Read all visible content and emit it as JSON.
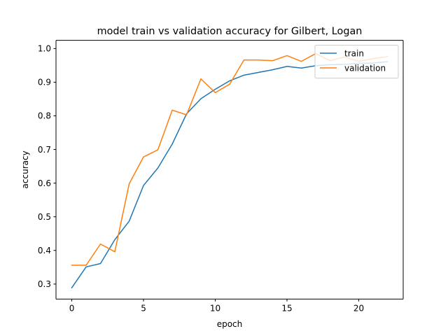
{
  "chart_data": {
    "type": "line",
    "title": "model train vs validation accuracy for Gilbert, Logan",
    "xlabel": "epoch",
    "ylabel": "accuracy",
    "xlim": [
      -1.1,
      23.1
    ],
    "ylim": [
      0.2555,
      1.0245
    ],
    "x_ticks": [
      0,
      5,
      10,
      15,
      20
    ],
    "x_tick_labels": [
      "0",
      "5",
      "10",
      "15",
      "20"
    ],
    "y_ticks": [
      0.3,
      0.4,
      0.5,
      0.6,
      0.7,
      0.8,
      0.9,
      1.0
    ],
    "y_tick_labels": [
      "0.3",
      "0.4",
      "0.5",
      "0.6",
      "0.7",
      "0.8",
      "0.9",
      "1.0"
    ],
    "grid": false,
    "legend": "top-right",
    "x": [
      0,
      1,
      2,
      3,
      4,
      5,
      6,
      7,
      8,
      9,
      10,
      11,
      12,
      13,
      14,
      15,
      16,
      17,
      18,
      19,
      20,
      21,
      22
    ],
    "series": [
      {
        "name": "train",
        "color": "#1f77b4",
        "values": [
          0.289,
          0.351,
          0.361,
          0.432,
          0.487,
          0.593,
          0.645,
          0.716,
          0.806,
          0.851,
          0.879,
          0.904,
          0.921,
          0.929,
          0.937,
          0.947,
          0.942,
          0.949,
          0.952,
          0.953,
          0.956,
          0.957,
          0.961
        ]
      },
      {
        "name": "validation",
        "color": "#ff7f0e",
        "values": [
          0.356,
          0.356,
          0.419,
          0.396,
          0.598,
          0.678,
          0.699,
          0.817,
          0.803,
          0.91,
          0.869,
          0.894,
          0.966,
          0.966,
          0.964,
          0.979,
          0.962,
          0.985,
          0.964,
          0.975,
          0.962,
          0.97,
          0.976
        ]
      }
    ]
  }
}
